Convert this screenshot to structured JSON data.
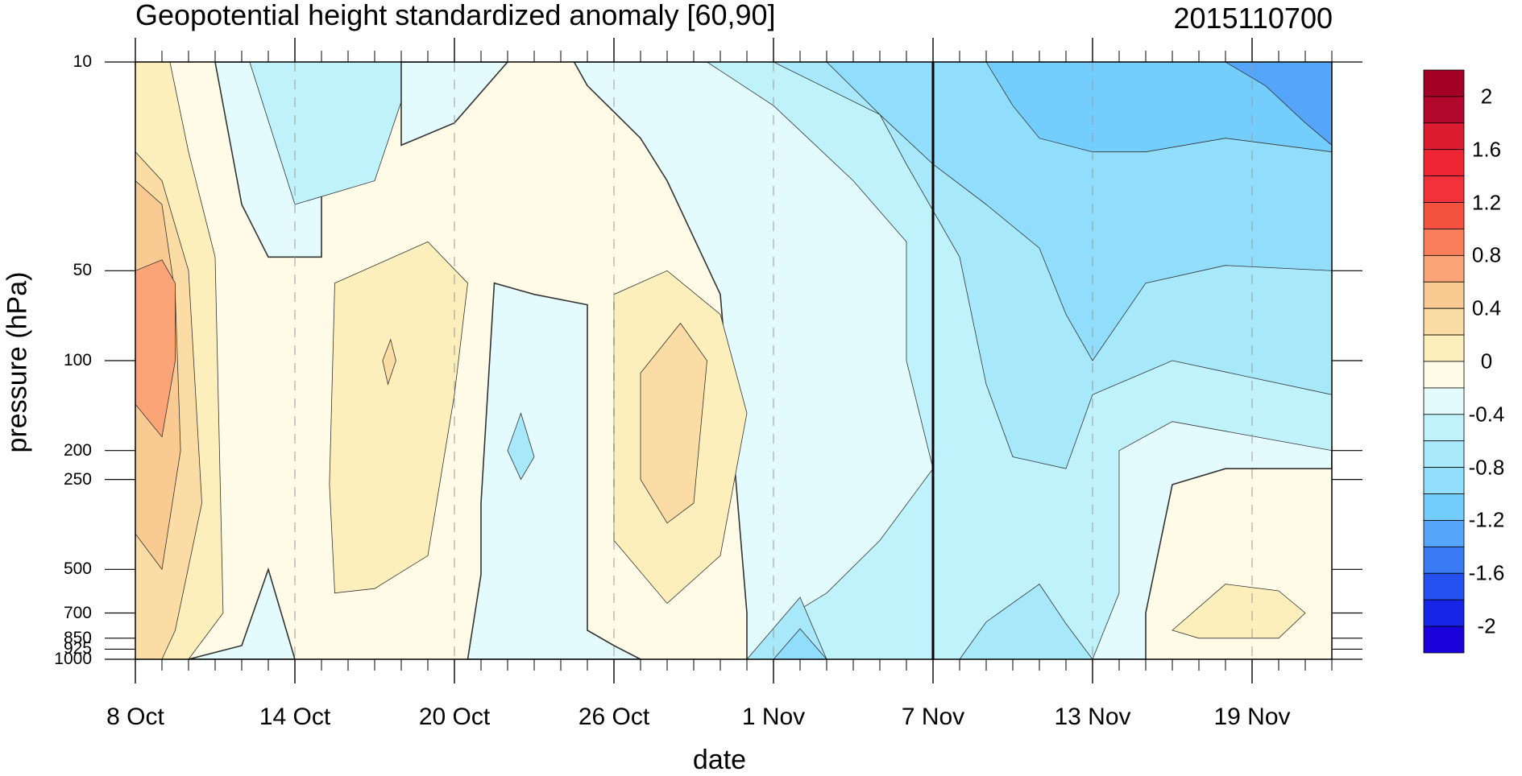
{
  "chart_data": {
    "type": "contour",
    "title": "Geopotential height standardized anomaly [60,90]",
    "subtitle": "2015110700",
    "xlabel": "date",
    "ylabel": "pressure (hPa)",
    "x_ticks": [
      "8 Oct",
      "14 Oct",
      "20 Oct",
      "26 Oct",
      "1 Nov",
      "7 Nov",
      "13 Nov",
      "19 Nov"
    ],
    "x_range": [
      "2015-10-08",
      "2015-11-22"
    ],
    "y_ticks": [
      10,
      50,
      100,
      200,
      250,
      500,
      700,
      850,
      925,
      1000
    ],
    "y_tick_labels": [
      "10",
      "50",
      "100",
      "200",
      "250",
      "500",
      "700",
      "850",
      "925",
      "1000"
    ],
    "y_scale": "log",
    "y_inverted": true,
    "vertical_marker_date": "7 Nov",
    "colorbar": {
      "levels": [
        -2.2,
        -2,
        -1.8,
        -1.6,
        -1.4,
        -1.2,
        -1,
        -0.8,
        -0.6,
        -0.4,
        -0.2,
        0,
        0.2,
        0.4,
        0.6,
        0.8,
        1,
        1.2,
        1.4,
        1.6,
        1.8,
        2,
        2.2
      ],
      "labels": [
        "2",
        "1.6",
        "1.2",
        "0.8",
        "0.4",
        "0",
        "-0.4",
        "-0.8",
        "-1.2",
        "-1.6",
        "-2"
      ],
      "colors": [
        "#1A00D9",
        "#1726E6",
        "#2550F0",
        "#3A7AF5",
        "#55A6FA",
        "#74CEFD",
        "#90DEFC",
        "#A8E8FB",
        "#C0F2FB",
        "#E4FBFD",
        "#FFFBE6",
        "#FCEFBC",
        "#FADCA4",
        "#F9CB93",
        "#FBA478",
        "#F97F5A",
        "#F4523F",
        "#F2313A",
        "#EE2633",
        "#DC1C31",
        "#B2082B",
        "#A30025"
      ]
    },
    "regions": [
      {
        "level": 0.0,
        "color": "#FFFBE6",
        "shape": "background"
      },
      {
        "level": -0.2,
        "color": "#E4FBFD",
        "shape": "polygon",
        "points": [
          [
            "2015-10-11",
            10
          ],
          [
            "2015-10-15",
            10
          ],
          [
            "2015-10-15",
            45
          ],
          [
            "2015-10-13",
            45
          ],
          [
            "2015-10-12",
            30
          ]
        ]
      },
      {
        "level": -0.4,
        "color": "#C0F2FB",
        "shape": "polygon",
        "points": [
          [
            "2015-10-12.3",
            10
          ],
          [
            "2015-10-18.5",
            10
          ],
          [
            "2015-10-17",
            25
          ],
          [
            "2015-10-14",
            30
          ]
        ]
      },
      {
        "level": -0.2,
        "color": "#E4FBFD",
        "shape": "polygon",
        "points": [
          [
            "2015-10-18",
            10
          ],
          [
            "2015-10-22",
            10
          ],
          [
            "2015-10-20",
            16
          ],
          [
            "2015-10-18",
            19
          ]
        ]
      },
      {
        "level": -0.2,
        "color": "#E4FBFD",
        "shape": "polygon",
        "points": [
          [
            "2015-10-20.5",
            1000
          ],
          [
            "2015-10-21",
            520
          ],
          [
            "2015-10-21",
            300
          ],
          [
            "2015-10-21.5",
            55
          ],
          [
            "2015-10-23",
            60
          ],
          [
            "2015-10-25",
            65
          ],
          [
            "2015-10-25",
            800
          ],
          [
            "2015-10-26",
            900
          ],
          [
            "2015-10-27",
            1000
          ]
        ]
      },
      {
        "level": -0.2,
        "color": "#E4FBFD",
        "shape": "polygon",
        "points": [
          [
            "2015-10-10",
            1000
          ],
          [
            "2015-10-12",
            900
          ],
          [
            "2015-10-13",
            500
          ],
          [
            "2015-10-14",
            1000
          ]
        ]
      },
      {
        "level": -0.2,
        "color": "#E4FBFD",
        "shape": "polygon",
        "points": [
          [
            "2015-10-24.5",
            10
          ],
          [
            "2015-11-22",
            10
          ],
          [
            "2015-11-22",
            230
          ],
          [
            "2015-11-18",
            230
          ],
          [
            "2015-11-16",
            260
          ],
          [
            "2015-11-15",
            700
          ],
          [
            "2015-11-15",
            1000
          ],
          [
            "2015-10-31",
            1000
          ],
          [
            "2015-10-31",
            700
          ],
          [
            "2015-10-30",
            60
          ],
          [
            "2015-10-28",
            25
          ],
          [
            "2015-10-27",
            18
          ],
          [
            "2015-10-25",
            12
          ]
        ]
      },
      {
        "level": -0.4,
        "color": "#C0F2FB",
        "shape": "polygon",
        "points": [
          [
            "2015-10-29.5",
            10
          ],
          [
            "2015-11-22",
            10
          ],
          [
            "2015-11-22",
            200
          ],
          [
            "2015-11-16",
            160
          ],
          [
            "2015-11-14",
            200
          ],
          [
            "2015-11-14",
            600
          ],
          [
            "2015-11-13",
            1000
          ],
          [
            "2015-10-31",
            1000
          ],
          [
            "2015-11-02",
            680
          ],
          [
            "2015-11-03",
            600
          ],
          [
            "2015-11-05",
            400
          ],
          [
            "2015-11-07",
            230
          ],
          [
            "2015-11-06",
            100
          ],
          [
            "2015-11-06",
            40
          ],
          [
            "2015-11-04",
            25
          ],
          [
            "2015-11-01",
            14
          ]
        ]
      },
      {
        "level": -0.6,
        "color": "#A8E8FB",
        "shape": "polygon",
        "points": [
          [
            "2015-11-01",
            10
          ],
          [
            "2015-11-22",
            10
          ],
          [
            "2015-11-22",
            130
          ],
          [
            "2015-11-16",
            100
          ],
          [
            "2015-11-13",
            130
          ],
          [
            "2015-11-12",
            230
          ],
          [
            "2015-11-10",
            210
          ],
          [
            "2015-11-09",
            120
          ],
          [
            "2015-11-08",
            45
          ],
          [
            "2015-11-06",
            22
          ],
          [
            "2015-11-05",
            15
          ]
        ]
      },
      {
        "level": -0.6,
        "color": "#A8E8FB",
        "shape": "polygon",
        "points": [
          [
            "2015-10-31",
            1000
          ],
          [
            "2015-11-02",
            620
          ],
          [
            "2015-11-03",
            1000
          ]
        ]
      },
      {
        "level": -0.6,
        "color": "#A8E8FB",
        "shape": "polygon",
        "points": [
          [
            "2015-11-08",
            1000
          ],
          [
            "2015-11-09",
            750
          ],
          [
            "2015-11-11",
            560
          ],
          [
            "2015-11-12",
            760
          ],
          [
            "2015-11-13",
            1000
          ]
        ]
      },
      {
        "level": -0.6,
        "color": "#A8E8FB",
        "shape": "polygon",
        "points": [
          [
            "2015-10-22",
            200
          ],
          [
            "2015-10-22.5",
            150
          ],
          [
            "2015-10-23",
            210
          ],
          [
            "2015-10-22.5",
            250
          ]
        ]
      },
      {
        "level": -0.8,
        "color": "#90DEFC",
        "shape": "polygon",
        "points": [
          [
            "2015-11-03",
            10
          ],
          [
            "2015-11-22",
            10
          ],
          [
            "2015-11-22",
            50
          ],
          [
            "2015-11-18",
            48
          ],
          [
            "2015-11-15",
            55
          ],
          [
            "2015-11-13",
            100
          ],
          [
            "2015-11-12",
            70
          ],
          [
            "2015-11-11",
            42
          ],
          [
            "2015-11-09",
            30
          ],
          [
            "2015-11-07",
            22
          ],
          [
            "2015-11-05",
            15
          ]
        ]
      },
      {
        "level": -0.8,
        "color": "#90DEFC",
        "shape": "polygon",
        "points": [
          [
            "2015-11-01",
            1000
          ],
          [
            "2015-11-02",
            790
          ],
          [
            "2015-11-03",
            1000
          ]
        ]
      },
      {
        "level": -1.0,
        "color": "#74CEFD",
        "shape": "polygon",
        "points": [
          [
            "2015-11-09",
            10
          ],
          [
            "2015-11-22",
            10
          ],
          [
            "2015-11-22",
            20
          ],
          [
            "2015-11-18",
            18
          ],
          [
            "2015-11-15",
            20
          ],
          [
            "2015-11-13",
            20
          ],
          [
            "2015-11-11",
            18
          ],
          [
            "2015-11-10",
            14
          ]
        ]
      },
      {
        "level": -1.2,
        "color": "#55A6FA",
        "shape": "polygon",
        "points": [
          [
            "2015-11-18",
            10
          ],
          [
            "2015-11-22",
            10
          ],
          [
            "2015-11-22",
            19
          ],
          [
            "2015-11-21",
            16
          ],
          [
            "2015-11-19.5",
            12
          ]
        ]
      },
      {
        "level": 0.2,
        "color": "#FCEFBC",
        "shape": "polygon",
        "points": [
          [
            "2015-10-08",
            10
          ],
          [
            "2015-10-09.3",
            10
          ],
          [
            "2015-10-10",
            20
          ],
          [
            "2015-10-11",
            45
          ],
          [
            "2015-10-11.3",
            700
          ],
          [
            "2015-10-10",
            1000
          ],
          [
            "2015-10-08",
            1000
          ]
        ]
      },
      {
        "level": 0.2,
        "color": "#FCEFBC",
        "shape": "polygon",
        "points": [
          [
            "2015-10-15.5",
            55
          ],
          [
            "2015-10-19",
            40
          ],
          [
            "2015-10-20.5",
            55
          ],
          [
            "2015-10-20",
            130
          ],
          [
            "2015-10-19",
            450
          ],
          [
            "2015-10-17",
            580
          ],
          [
            "2015-10-15.5",
            600
          ],
          [
            "2015-10-15.3",
            260
          ]
        ]
      },
      {
        "level": 0.2,
        "color": "#FCEFBC",
        "shape": "polygon",
        "points": [
          [
            "2015-10-26",
            60
          ],
          [
            "2015-10-28",
            50
          ],
          [
            "2015-10-30",
            70
          ],
          [
            "2015-10-31",
            150
          ],
          [
            "2015-10-30",
            450
          ],
          [
            "2015-10-28",
            650
          ],
          [
            "2015-10-26",
            400
          ]
        ]
      },
      {
        "level": 0.2,
        "color": "#FCEFBC",
        "shape": "polygon",
        "points": [
          [
            "2015-11-16",
            800
          ],
          [
            "2015-11-18",
            560
          ],
          [
            "2015-11-20",
            590
          ],
          [
            "2015-11-21",
            700
          ],
          [
            "2015-11-20",
            850
          ],
          [
            "2015-11-17",
            850
          ]
        ]
      },
      {
        "level": 0.4,
        "color": "#FADCA4",
        "shape": "polygon",
        "points": [
          [
            "2015-10-08",
            20
          ],
          [
            "2015-10-09",
            25
          ],
          [
            "2015-10-10",
            50
          ],
          [
            "2015-10-10.5",
            300
          ],
          [
            "2015-10-09.5",
            800
          ],
          [
            "2015-10-09",
            1000
          ],
          [
            "2015-10-08",
            1000
          ]
        ]
      },
      {
        "level": 0.4,
        "color": "#FADCA4",
        "shape": "polygon",
        "points": [
          [
            "2015-10-17.3",
            100
          ],
          [
            "2015-10-17.6",
            85
          ],
          [
            "2015-10-17.8",
            100
          ],
          [
            "2015-10-17.5",
            120
          ]
        ]
      },
      {
        "level": 0.4,
        "color": "#FADCA4",
        "shape": "polygon",
        "points": [
          [
            "2015-10-27",
            110
          ],
          [
            "2015-10-28.5",
            75
          ],
          [
            "2015-10-29.5",
            100
          ],
          [
            "2015-10-29",
            300
          ],
          [
            "2015-10-28",
            350
          ],
          [
            "2015-10-27",
            250
          ]
        ]
      },
      {
        "level": 0.6,
        "color": "#F9CB93",
        "shape": "polygon",
        "points": [
          [
            "2015-10-08",
            25
          ],
          [
            "2015-10-09",
            30
          ],
          [
            "2015-10-09.5",
            60
          ],
          [
            "2015-10-09.7",
            200
          ],
          [
            "2015-10-09",
            500
          ],
          [
            "2015-10-08",
            380
          ]
        ]
      },
      {
        "level": 0.8,
        "color": "#FBA478",
        "shape": "polygon",
        "points": [
          [
            "2015-10-08",
            50
          ],
          [
            "2015-10-09",
            46
          ],
          [
            "2015-10-09.5",
            55
          ],
          [
            "2015-10-09.5",
            100
          ],
          [
            "2015-10-09",
            180
          ],
          [
            "2015-10-08",
            140
          ]
        ]
      }
    ]
  }
}
